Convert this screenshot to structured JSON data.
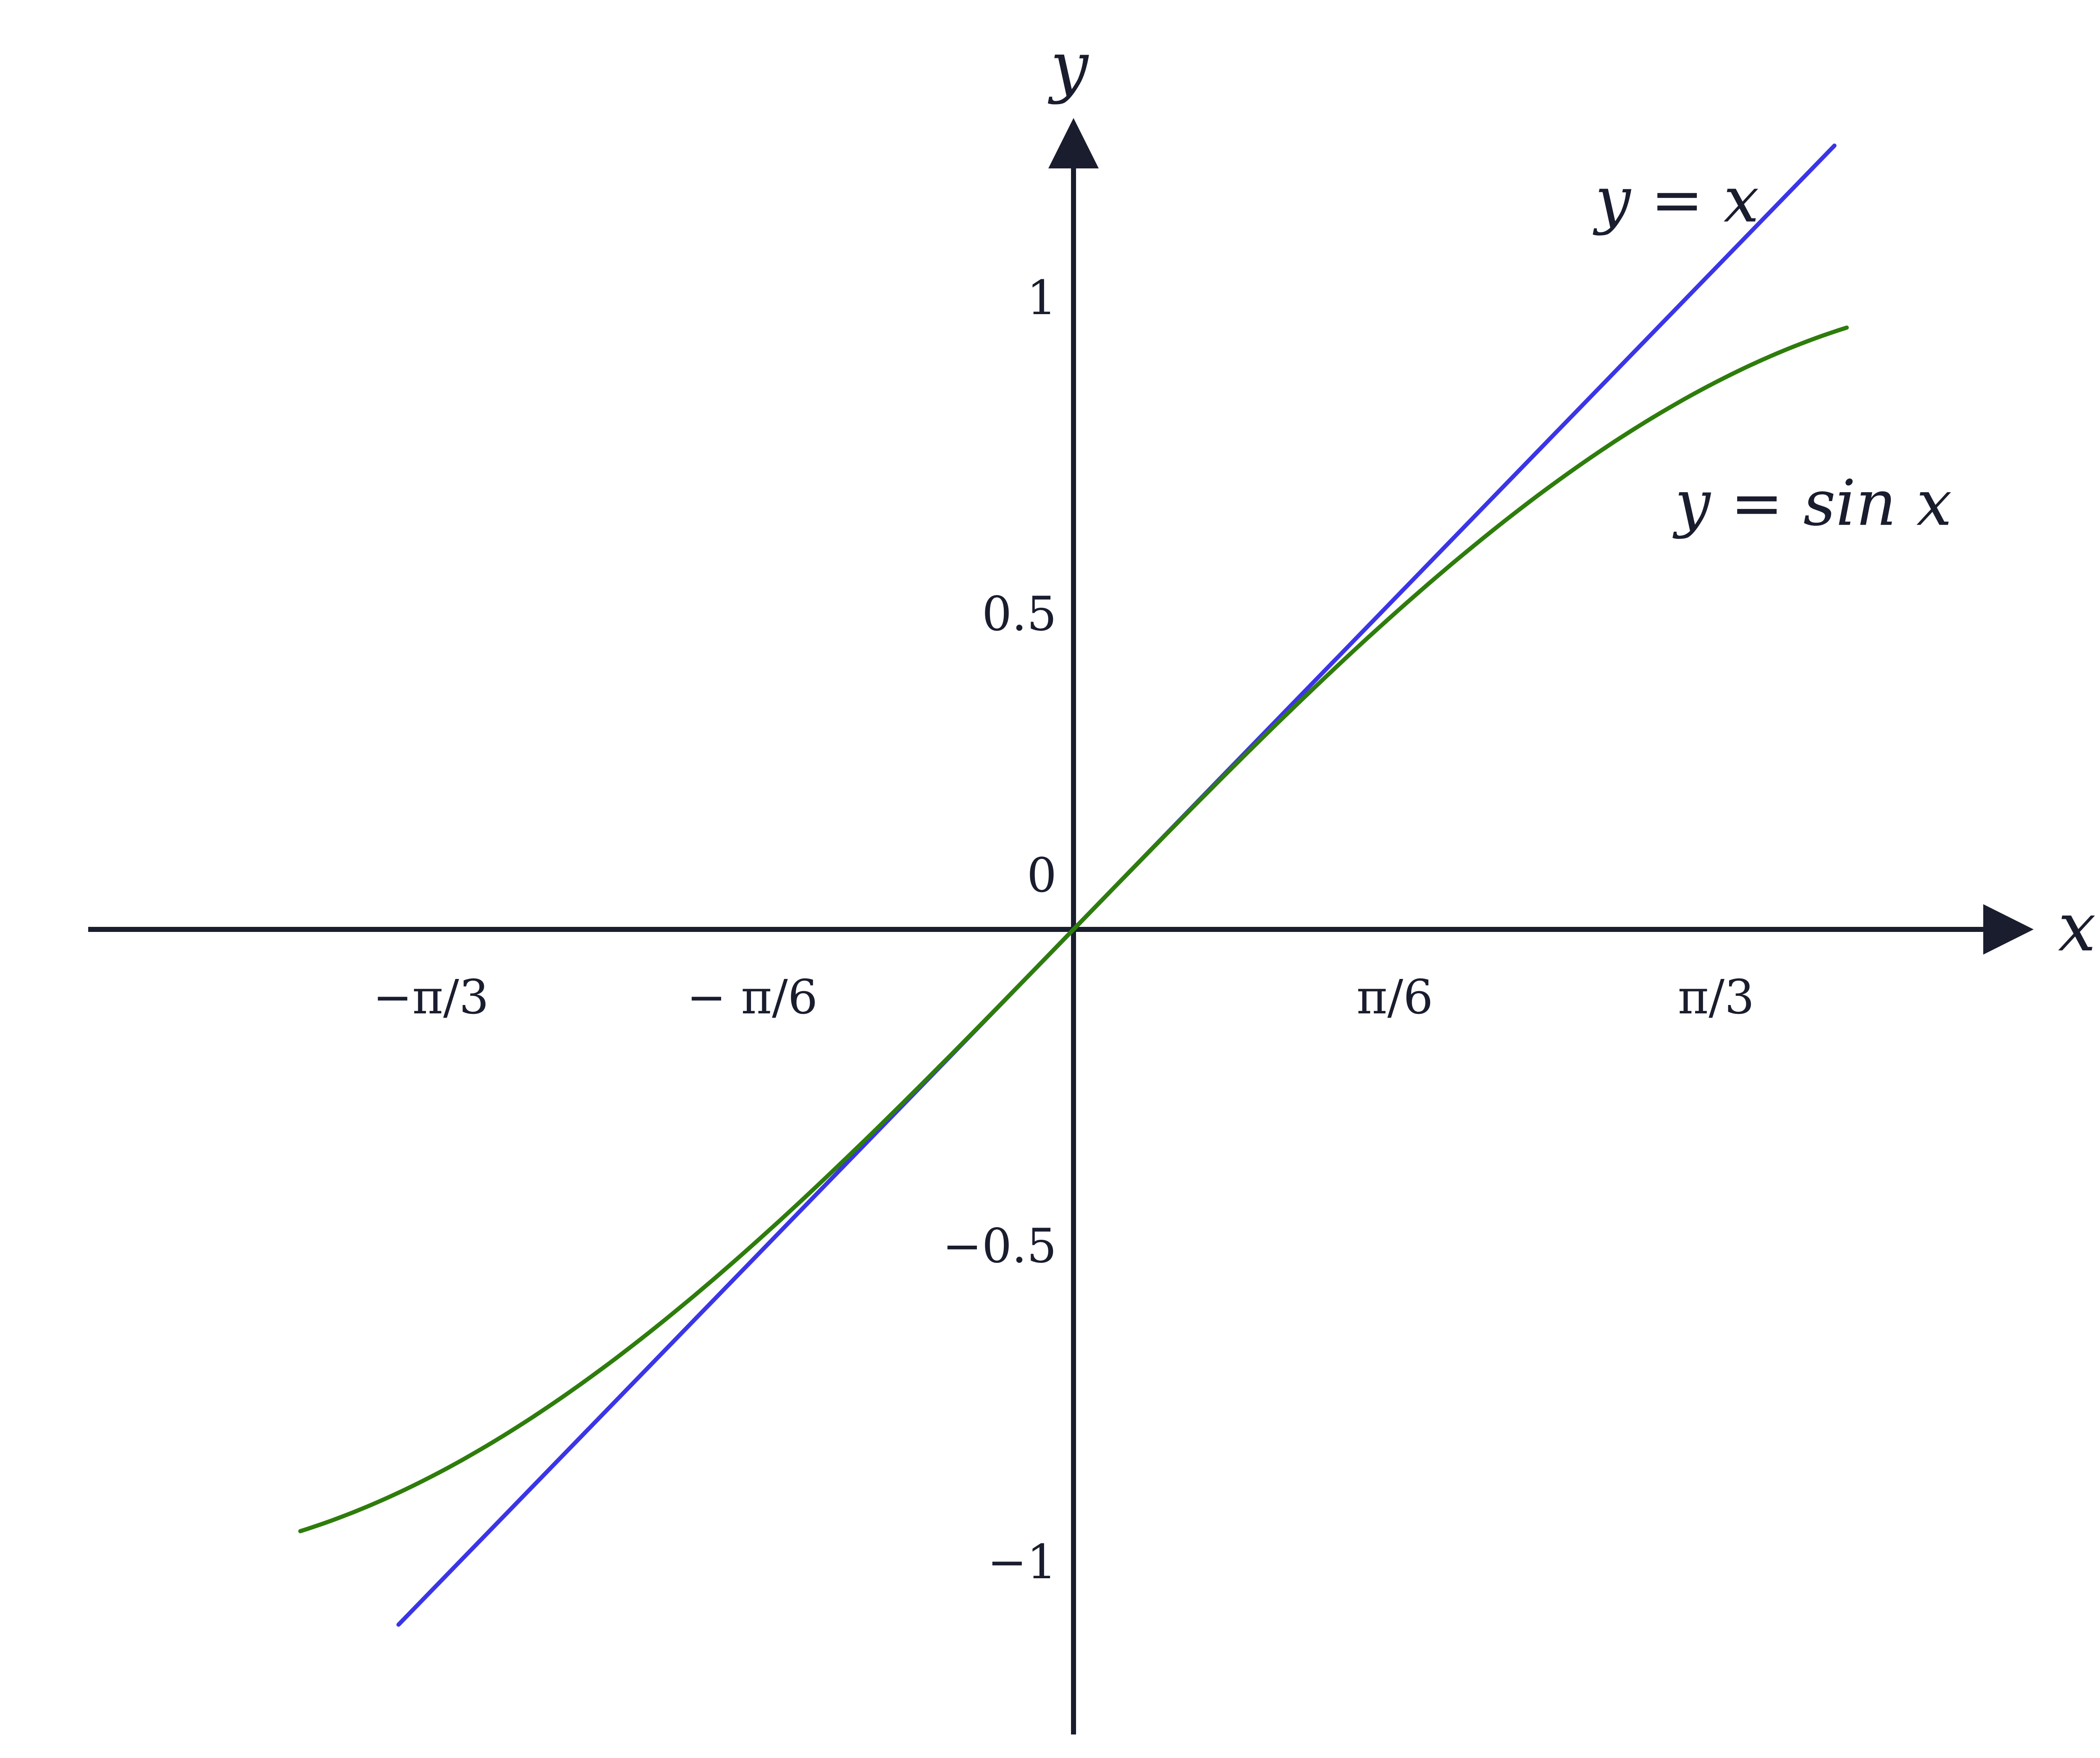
{
  "chart_data": {
    "type": "line",
    "title": "",
    "xlabel": "x",
    "ylabel": "y",
    "x_ticks": [
      {
        "value": -1.0472,
        "label": "−π/3"
      },
      {
        "value": -0.5236,
        "label": "− π/6"
      },
      {
        "value": 0.5236,
        "label": "π/6"
      },
      {
        "value": 1.0472,
        "label": "π/3"
      }
    ],
    "y_ticks": [
      {
        "value": 1,
        "label": "1"
      },
      {
        "value": 0.5,
        "label": "0.5"
      },
      {
        "value": 0,
        "label": "0"
      },
      {
        "value": -0.5,
        "label": "−0.5"
      },
      {
        "value": -1,
        "label": "−1"
      }
    ],
    "xlim": [
      -1.53,
      1.48
    ],
    "ylim": [
      -1.27,
      1.27
    ],
    "series": [
      {
        "name": "y = x",
        "color": "#3b35e8",
        "x": [
          -1.1,
          -0.8,
          -0.5,
          -0.2,
          0,
          0.2,
          0.5,
          0.8,
          1.1,
          1.24
        ],
        "y": [
          -1.1,
          -0.8,
          -0.5,
          -0.2,
          0,
          0.2,
          0.5,
          0.8,
          1.1,
          1.24
        ]
      },
      {
        "name": "y = sin x",
        "color": "#2e7d0c",
        "x": [
          -1.26,
          -1.1,
          -0.9,
          -0.7,
          -0.5,
          -0.3,
          -0.15,
          0,
          0.15,
          0.3,
          0.5,
          0.7,
          0.9,
          1.1,
          1.26
        ],
        "y": [
          -0.952,
          -0.891,
          -0.783,
          -0.644,
          -0.479,
          -0.296,
          -0.149,
          0,
          0.149,
          0.296,
          0.479,
          0.644,
          0.783,
          0.891,
          0.952
        ]
      }
    ],
    "annotations": [
      {
        "text": "y = x",
        "x": 0.85,
        "y": 1.12
      },
      {
        "text": "y = sin x",
        "x": 0.98,
        "y": 0.64
      }
    ]
  }
}
